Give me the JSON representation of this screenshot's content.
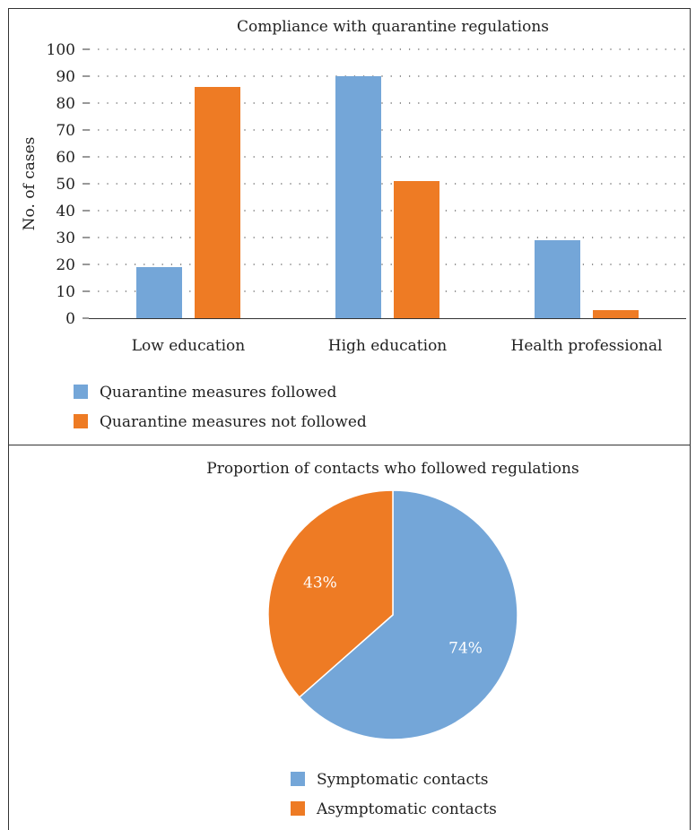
{
  "charts": {
    "bar": {
      "title": "Compliance with quarantine regulations",
      "ylabel": "No. of cases"
    },
    "pie": {
      "title": "Proportion of contacts who followed regulations",
      "slice_labels": [
        "74%",
        "43%"
      ]
    }
  },
  "chart_data": [
    {
      "type": "bar",
      "title": "Compliance with quarantine regulations",
      "xlabel": "",
      "ylabel": "No. of cases",
      "ylim": [
        0,
        100
      ],
      "yticks": [
        0,
        10,
        20,
        30,
        40,
        50,
        60,
        70,
        80,
        90,
        100
      ],
      "grid": true,
      "legend_position": "bottom-left",
      "categories": [
        "Low education",
        "High education",
        "Health professional"
      ],
      "series": [
        {
          "name": "Quarantine measures followed",
          "values": [
            19,
            90,
            29
          ],
          "color": "#74a6d8"
        },
        {
          "name": "Quarantine measures not followed",
          "values": [
            86,
            51,
            3
          ],
          "color": "#ee7b24"
        }
      ]
    },
    {
      "type": "pie",
      "title": "Proportion of contacts who followed regulations",
      "legend_position": "bottom",
      "slices": [
        {
          "name": "Symptomatic contacts",
          "value": 63.5,
          "label": "74%",
          "color": "#74a6d8"
        },
        {
          "name": "Asymptomatic contacts",
          "value": 36.5,
          "label": "43%",
          "color": "#ee7b24"
        }
      ]
    }
  ]
}
